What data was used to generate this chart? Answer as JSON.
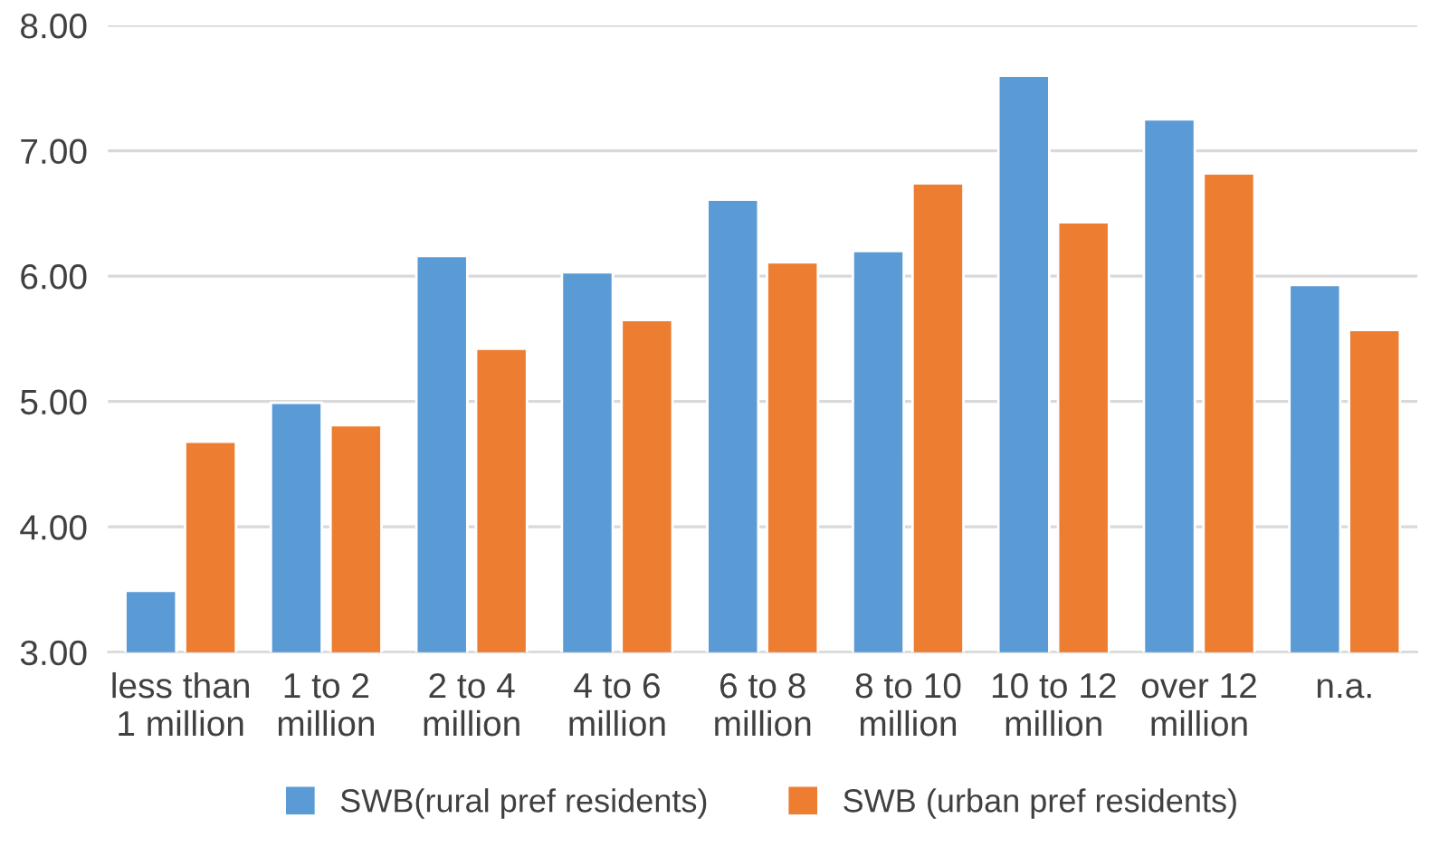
{
  "chart_data": {
    "type": "bar",
    "categories": [
      "less than\n1 million",
      "1 to 2\nmillion",
      "2 to 4\nmillion",
      "4 to 6\nmillion",
      "6 to 8\nmillion",
      "8 to 10\nmillion",
      "10 to 12\nmillion",
      "over 12\nmillion",
      "n.a."
    ],
    "series": [
      {
        "name": "SWB(rural pref residents)",
        "color": "#5b9bd5",
        "values": [
          3.49,
          4.99,
          6.16,
          6.03,
          6.61,
          6.2,
          7.6,
          7.25,
          5.93
        ]
      },
      {
        "name": "SWB (urban pref residents)",
        "color": "#ed7d31",
        "values": [
          4.68,
          4.81,
          5.42,
          5.65,
          6.11,
          6.74,
          6.43,
          6.82,
          5.57
        ]
      }
    ],
    "ylim": [
      3,
      8
    ],
    "yticks": [
      {
        "value": 3,
        "label": "3.00"
      },
      {
        "value": 4,
        "label": "4.00"
      },
      {
        "value": 5,
        "label": "5.00"
      },
      {
        "value": 6,
        "label": "6.00"
      },
      {
        "value": 7,
        "label": "7.00"
      },
      {
        "value": 8,
        "label": "8.00"
      }
    ],
    "grid": "y",
    "legend": "bottom"
  }
}
